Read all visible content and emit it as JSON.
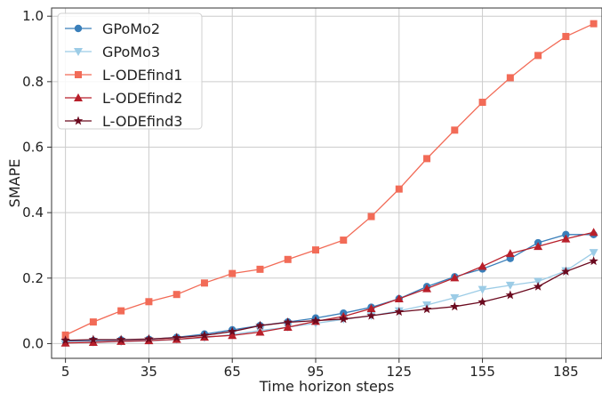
{
  "chart_data": {
    "type": "line",
    "xlabel": "Time horizon steps",
    "ylabel": "SMAPE",
    "xlim": [
      0,
      198
    ],
    "ylim": [
      -0.045,
      1.025
    ],
    "xticks": [
      5,
      35,
      65,
      95,
      125,
      155,
      185
    ],
    "yticks": [
      0.0,
      0.2,
      0.4,
      0.6,
      0.8,
      1.0
    ],
    "ytick_labels": [
      "0.0",
      "0.2",
      "0.4",
      "0.6",
      "0.8",
      "1.0"
    ],
    "grid": true,
    "legend_position": "top-left",
    "x": [
      5,
      15,
      25,
      35,
      45,
      55,
      65,
      75,
      85,
      95,
      105,
      115,
      125,
      135,
      145,
      155,
      165,
      175,
      185,
      195
    ],
    "series": [
      {
        "name": "GPoMo2",
        "color": "#3a7fba",
        "marker": "circle",
        "values": [
          0.008,
          0.009,
          0.011,
          0.013,
          0.019,
          0.029,
          0.042,
          0.055,
          0.066,
          0.078,
          0.093,
          0.111,
          0.137,
          0.174,
          0.204,
          0.228,
          0.26,
          0.308,
          0.333,
          0.333
        ]
      },
      {
        "name": "GPoMo3",
        "color": "#9ccce6",
        "marker": "triangle-down",
        "values": [
          0.003,
          0.004,
          0.006,
          0.008,
          0.012,
          0.018,
          0.028,
          0.04,
          0.05,
          0.062,
          0.074,
          0.085,
          0.1,
          0.118,
          0.14,
          0.165,
          0.178,
          0.19,
          0.222,
          0.278
        ]
      },
      {
        "name": "L-ODEfind1",
        "color": "#f26b57",
        "marker": "square",
        "values": [
          0.026,
          0.066,
          0.1,
          0.128,
          0.15,
          0.185,
          0.214,
          0.227,
          0.257,
          0.286,
          0.316,
          0.388,
          0.472,
          0.565,
          0.652,
          0.737,
          0.812,
          0.88,
          0.938,
          0.977
        ]
      },
      {
        "name": "L-ODEfind2",
        "color": "#b81f2a",
        "marker": "triangle-up",
        "values": [
          0.002,
          0.004,
          0.007,
          0.009,
          0.013,
          0.02,
          0.025,
          0.035,
          0.05,
          0.068,
          0.083,
          0.107,
          0.137,
          0.168,
          0.201,
          0.236,
          0.275,
          0.297,
          0.32,
          0.34
        ]
      },
      {
        "name": "L-ODEfind3",
        "color": "#6b0a1f",
        "marker": "star",
        "values": [
          0.01,
          0.012,
          0.012,
          0.014,
          0.018,
          0.025,
          0.037,
          0.055,
          0.065,
          0.07,
          0.075,
          0.085,
          0.097,
          0.105,
          0.113,
          0.127,
          0.148,
          0.174,
          0.22,
          0.252
        ]
      }
    ]
  }
}
